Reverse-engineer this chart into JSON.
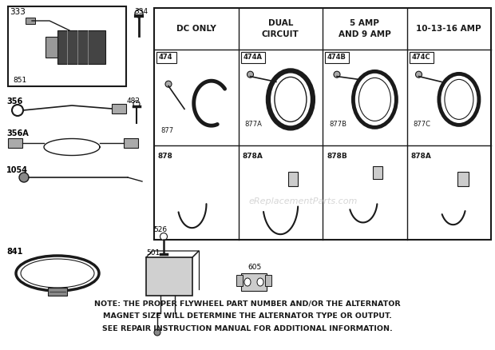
{
  "bg_color": "#ffffff",
  "fig_width": 6.2,
  "fig_height": 4.38,
  "dpi": 100,
  "watermark": "eReplacementParts.com",
  "note_line1": "NOTE: THE PROPER FLYWHEEL PART NUMBER AND/OR THE ALTERNATOR",
  "note_line2": "MAGNET SIZE WILL DETERMINE THE ALTERNATOR TYPE OR OUTPUT.",
  "note_line3": "SEE REPAIR INSTRUCTION MANUAL FOR ADDITIONAL INFORMATION.",
  "table_headers": [
    "DC ONLY",
    "DUAL\nCIRCUIT",
    "5 AMP\nAND 9 AMP",
    "10-13-16 AMP"
  ],
  "row1_labels": [
    "474",
    "474A",
    "474B",
    "474C"
  ],
  "row1_sub": [
    "877",
    "877A",
    "877B",
    "877C"
  ],
  "row2_labels": [
    "878",
    "878A",
    "878B",
    "878A"
  ]
}
